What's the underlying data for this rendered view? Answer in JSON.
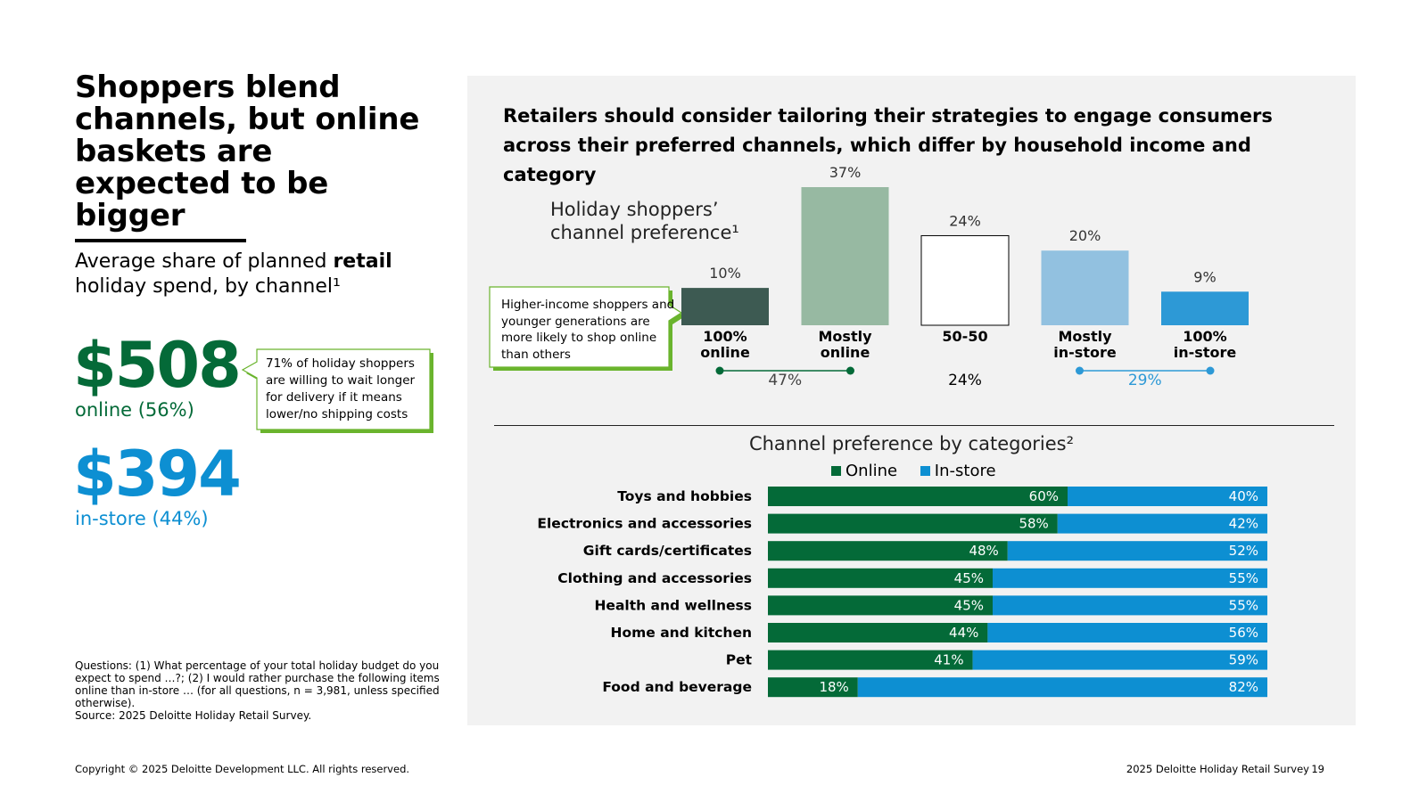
{
  "left": {
    "title": "Shoppers blend channels, but online baskets are expected to be bigger",
    "subtitle_prefix": "Average share of planned ",
    "subtitle_bold": "retail",
    "subtitle_suffix": " holiday spend, by channel¹",
    "online_amount": "$508",
    "online_label": "online (56%)",
    "instore_amount": "$394",
    "instore_label": "in-store (44%)",
    "callout": "71% of holiday shoppers are willing to wait longer for delivery if it means lower/no shipping costs",
    "questions": "Questions: (1) What percentage of your total holiday budget do you expect to spend …?; (2) I would rather purchase the following items online than in-store … (for all questions, n = 3,981, unless specified otherwise).",
    "source": "Source: 2025 Deloitte Holiday Retail Survey."
  },
  "right": {
    "headline": "Retailers should consider tailoring their strategies to engage consumers across their preferred channels, which differ by household income and category",
    "callout": "Higher-income shoppers and younger generations are more likely to shop online than others"
  },
  "footer": {
    "copyright": "Copyright © 2025 Deloitte Development LLC. All rights reserved.",
    "survey": "2025 Deloitte Holiday Retail Survey",
    "page": "19"
  },
  "colors": {
    "online_dark": "#046a38",
    "instore_blue": "#0d8fd2",
    "callout_green": "#6ab42d"
  },
  "chart_data": [
    {
      "type": "bar",
      "title": "Holiday shoppers’ channel preference¹",
      "categories": [
        "100% online",
        "Mostly online",
        "50-50",
        "Mostly in-store",
        "100% in-store"
      ],
      "category_lines": [
        [
          "100%",
          "online"
        ],
        [
          "Mostly",
          "online"
        ],
        [
          "50-50"
        ],
        [
          "Mostly",
          "in-store"
        ],
        [
          "100%",
          "in-store"
        ]
      ],
      "values": [
        10,
        37,
        24,
        20,
        9
      ],
      "value_labels": [
        "10%",
        "37%",
        "24%",
        "20%",
        "9%"
      ],
      "colors": [
        "#3d5a52",
        "#97b9a2",
        "#ffffff",
        "#92c1e0",
        "#2d99d6"
      ],
      "ymax": 37,
      "groups": [
        {
          "label": "47%",
          "from": 0,
          "to": 1,
          "color": "#046a38"
        },
        {
          "label": "24%",
          "from": 2,
          "to": 2,
          "color": "#000000"
        },
        {
          "label": "29%",
          "from": 3,
          "to": 4,
          "color": "#2d99d6"
        }
      ]
    },
    {
      "type": "bar",
      "orientation": "horizontal-stacked",
      "title": "Channel preference by categories²",
      "legend": [
        "Online",
        "In-store"
      ],
      "legend_placement": "top-center",
      "categories": [
        "Toys and hobbies",
        "Electronics and accessories",
        "Gift cards/certificates",
        "Clothing and accessories",
        "Health and wellness",
        "Home and kitchen",
        "Pet",
        "Food and beverage"
      ],
      "series": [
        {
          "name": "Online",
          "values": [
            60,
            58,
            48,
            45,
            45,
            44,
            41,
            18
          ],
          "color": "#046a38"
        },
        {
          "name": "In-store",
          "values": [
            40,
            42,
            52,
            55,
            55,
            56,
            59,
            82
          ],
          "color": "#0d8fd2"
        }
      ],
      "xlim": [
        0,
        100
      ]
    }
  ]
}
